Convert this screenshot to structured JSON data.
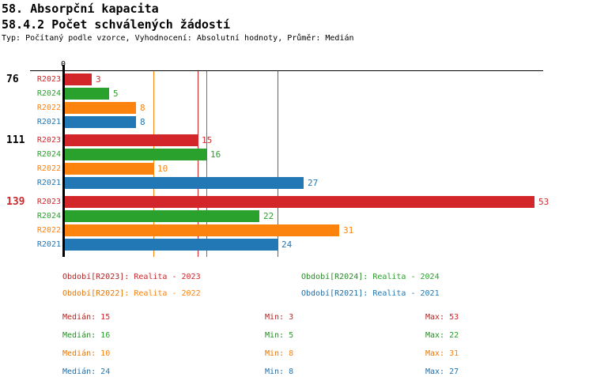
{
  "header": {
    "title": "58. Absorpční kapacita",
    "subtitle": "58.4.2 Počet schválených žádostí",
    "meta": "Typ: Počítaný podle vzorce, Vyhodnocení: Absolutní hodnoty, Průměr: Medián"
  },
  "chart_data": {
    "type": "bar",
    "orientation": "horizontal",
    "title": "58.4.2 Počet schválených žádostí",
    "categories": [
      "76",
      "111",
      "139"
    ],
    "category_label_colors": [
      "#000000",
      "#000000",
      "#d2262a"
    ],
    "series": [
      {
        "name": "R2023",
        "label": "R2023",
        "color": "#d2262a",
        "color_dark": "#b22222",
        "values": [
          3,
          15,
          53
        ],
        "median": 15
      },
      {
        "name": "R2024",
        "label": "R2024",
        "color": "#2aa12c",
        "color_dark": "#258c25",
        "values": [
          5,
          16,
          22
        ],
        "median": 16
      },
      {
        "name": "R2022",
        "label": "R2022",
        "color": "#fd830f",
        "color_dark": "#e67607",
        "values": [
          8,
          10,
          31
        ],
        "median": 10
      },
      {
        "name": "R2021",
        "label": "R2021",
        "color": "#2277b5",
        "color_dark": "#1f6da6",
        "values": [
          8,
          27,
          24
        ],
        "median": 24
      }
    ],
    "xlim": [
      0,
      54
    ],
    "x_zero_label": "0",
    "grid": false,
    "legend_position": "bottom",
    "value_labels_shown": true,
    "median_lines_shown": true
  },
  "legend": {
    "entries": [
      {
        "series": "R2023",
        "label": "Období[R2023]:",
        "value": "Realita - 2023"
      },
      {
        "series": "R2024",
        "label": "Období[R2024]:",
        "value": "Realita - 2024"
      },
      {
        "series": "R2022",
        "label": "Období[R2022]:",
        "value": "Realita - 2022"
      },
      {
        "series": "R2021",
        "label": "Období[R2021]:",
        "value": "Realita - 2021"
      }
    ]
  },
  "stats": {
    "rows": [
      {
        "series": "R2023",
        "cells": [
          {
            "label": "Medián:",
            "value": "15"
          },
          {
            "label": "Min:",
            "value": "3"
          },
          {
            "label": "Max:",
            "value": "53"
          }
        ]
      },
      {
        "series": "R2024",
        "cells": [
          {
            "label": "Medián:",
            "value": "16"
          },
          {
            "label": "Min:",
            "value": "5"
          },
          {
            "label": "Max:",
            "value": "22"
          }
        ]
      },
      {
        "series": "R2022",
        "cells": [
          {
            "label": "Medián:",
            "value": "10"
          },
          {
            "label": "Min:",
            "value": "8"
          },
          {
            "label": "Max:",
            "value": "31"
          }
        ]
      },
      {
        "series": "R2021",
        "cells": [
          {
            "label": "Medián:",
            "value": "24"
          },
          {
            "label": "Min:",
            "value": "8"
          },
          {
            "label": "Max:",
            "value": "27"
          }
        ]
      }
    ]
  }
}
